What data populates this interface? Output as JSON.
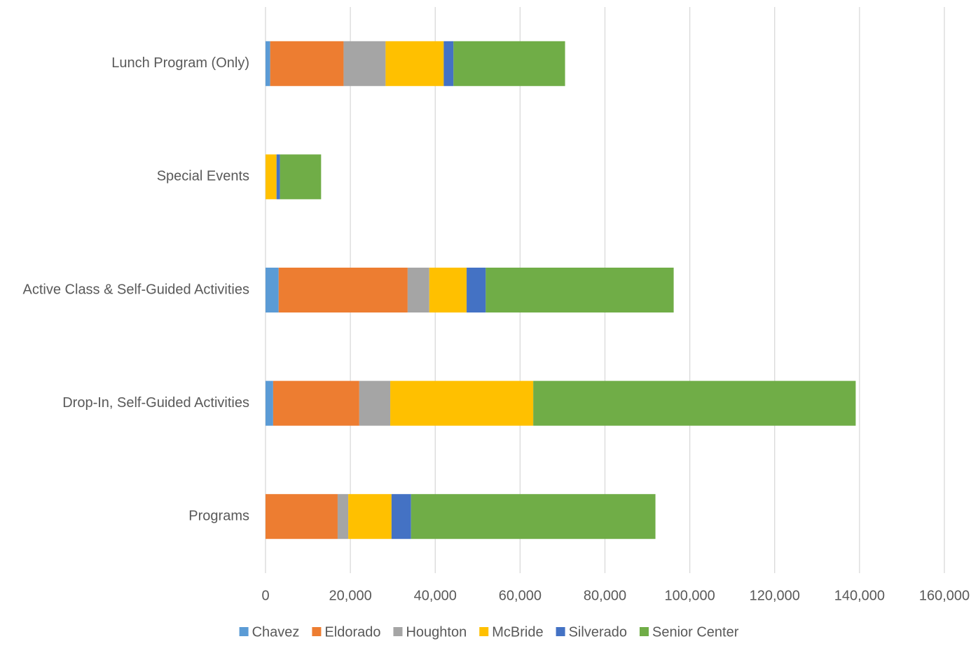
{
  "chart_data": {
    "type": "stacked-bar-horizontal",
    "categories": [
      "Lunch Program (Only)",
      "Special Events",
      "Active Class & Self-Guided Activities",
      "Drop-In, Self-Guided Activities",
      "Programs"
    ],
    "series": [
      {
        "name": "Chavez",
        "color": "#5b9bd5",
        "values": [
          1100,
          0,
          3100,
          1800,
          0
        ]
      },
      {
        "name": "Eldorado",
        "color": "#ed7d31",
        "values": [
          17300,
          0,
          30400,
          20300,
          17000
        ]
      },
      {
        "name": "Houghton",
        "color": "#a5a5a5",
        "values": [
          9900,
          0,
          5100,
          7300,
          2500
        ]
      },
      {
        "name": "McBride",
        "color": "#ffc000",
        "values": [
          13700,
          2600,
          8800,
          33700,
          10200
        ]
      },
      {
        "name": "Silverado",
        "color": "#4472c4",
        "values": [
          2300,
          800,
          4500,
          0,
          4600
        ]
      },
      {
        "name": "Senior Center",
        "color": "#70ad47",
        "values": [
          26300,
          9700,
          44300,
          76000,
          57600
        ]
      }
    ],
    "xlim": [
      0,
      160000
    ],
    "xticks": [
      0,
      {
        "value": 20000,
        "label": "20,000"
      },
      {
        "value": 40000,
        "label": "40,000"
      },
      {
        "value": 60000,
        "label": "60,000"
      },
      {
        "value": 80000,
        "label": "80,000"
      },
      {
        "value": 100000,
        "label": "100,000"
      },
      {
        "value": 120000,
        "label": "120,000"
      },
      {
        "value": 140000,
        "label": "140,000"
      },
      {
        "value": 160000,
        "label": "160,000"
      }
    ],
    "grid": true,
    "legend": "bottom"
  }
}
